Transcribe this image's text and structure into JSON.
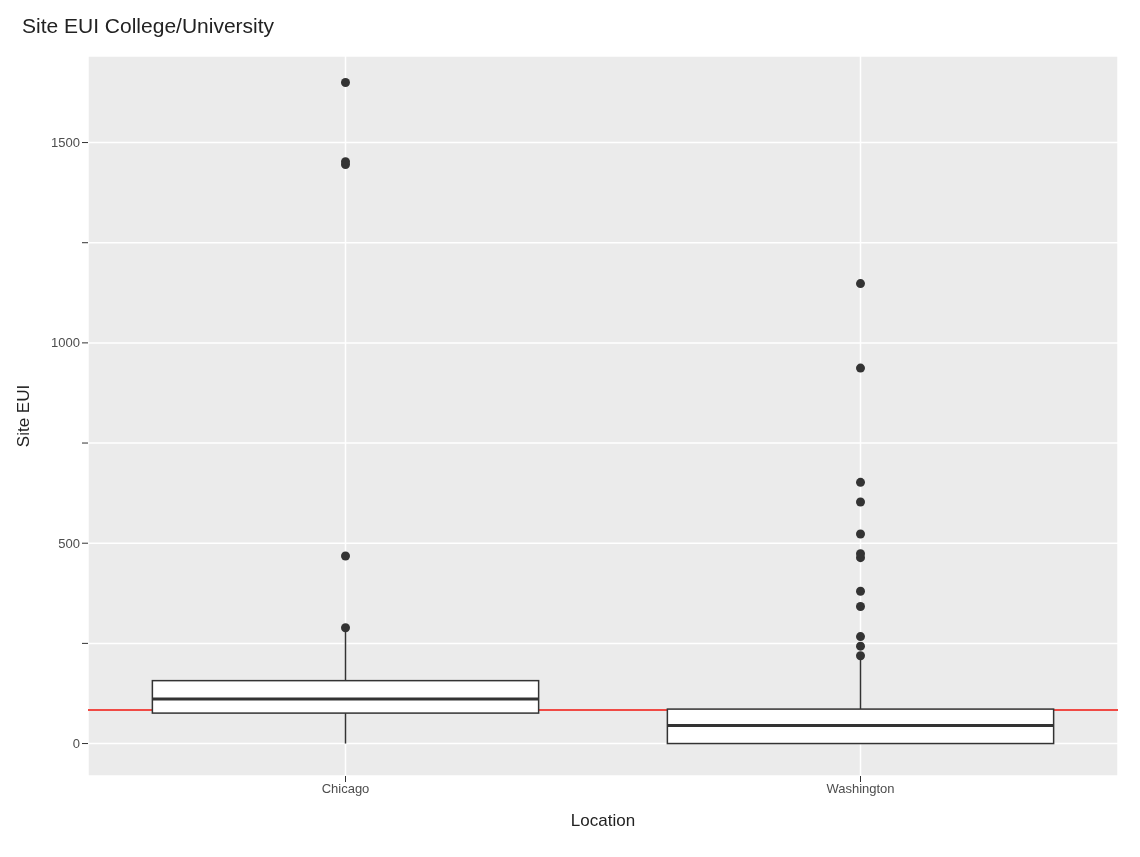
{
  "chart_data": {
    "type": "box",
    "title": "Site EUI College/University",
    "xlabel": "Location",
    "ylabel": "Site EUI",
    "categories": [
      "Chicago",
      "Washington"
    ],
    "series": [
      {
        "color": "#333333",
        "boxes": [
          {
            "low": 0,
            "q1": 76,
            "median": 111,
            "q3": 157,
            "high": 285,
            "outliers": [
              289,
              468,
              1445,
              1452,
              1650
            ]
          },
          {
            "low": 0,
            "q1": 0,
            "median": 45,
            "q3": 86,
            "high": 210,
            "outliers": [
              219,
              243,
              267,
              342,
              380,
              464,
              474,
              523,
              603,
              652,
              937,
              1148
            ]
          }
        ]
      }
    ],
    "ylim": [
      -81,
      1716
    ],
    "yticks": [
      0,
      {
        "value": 250,
        "label": null
      },
      500,
      {
        "value": 750,
        "label": null
      },
      1000,
      {
        "value": 1250,
        "label": null
      },
      1500
    ],
    "ref_lines": [
      {
        "axis": "y",
        "value": 84,
        "color": "#f04a44"
      }
    ],
    "grid": true
  }
}
